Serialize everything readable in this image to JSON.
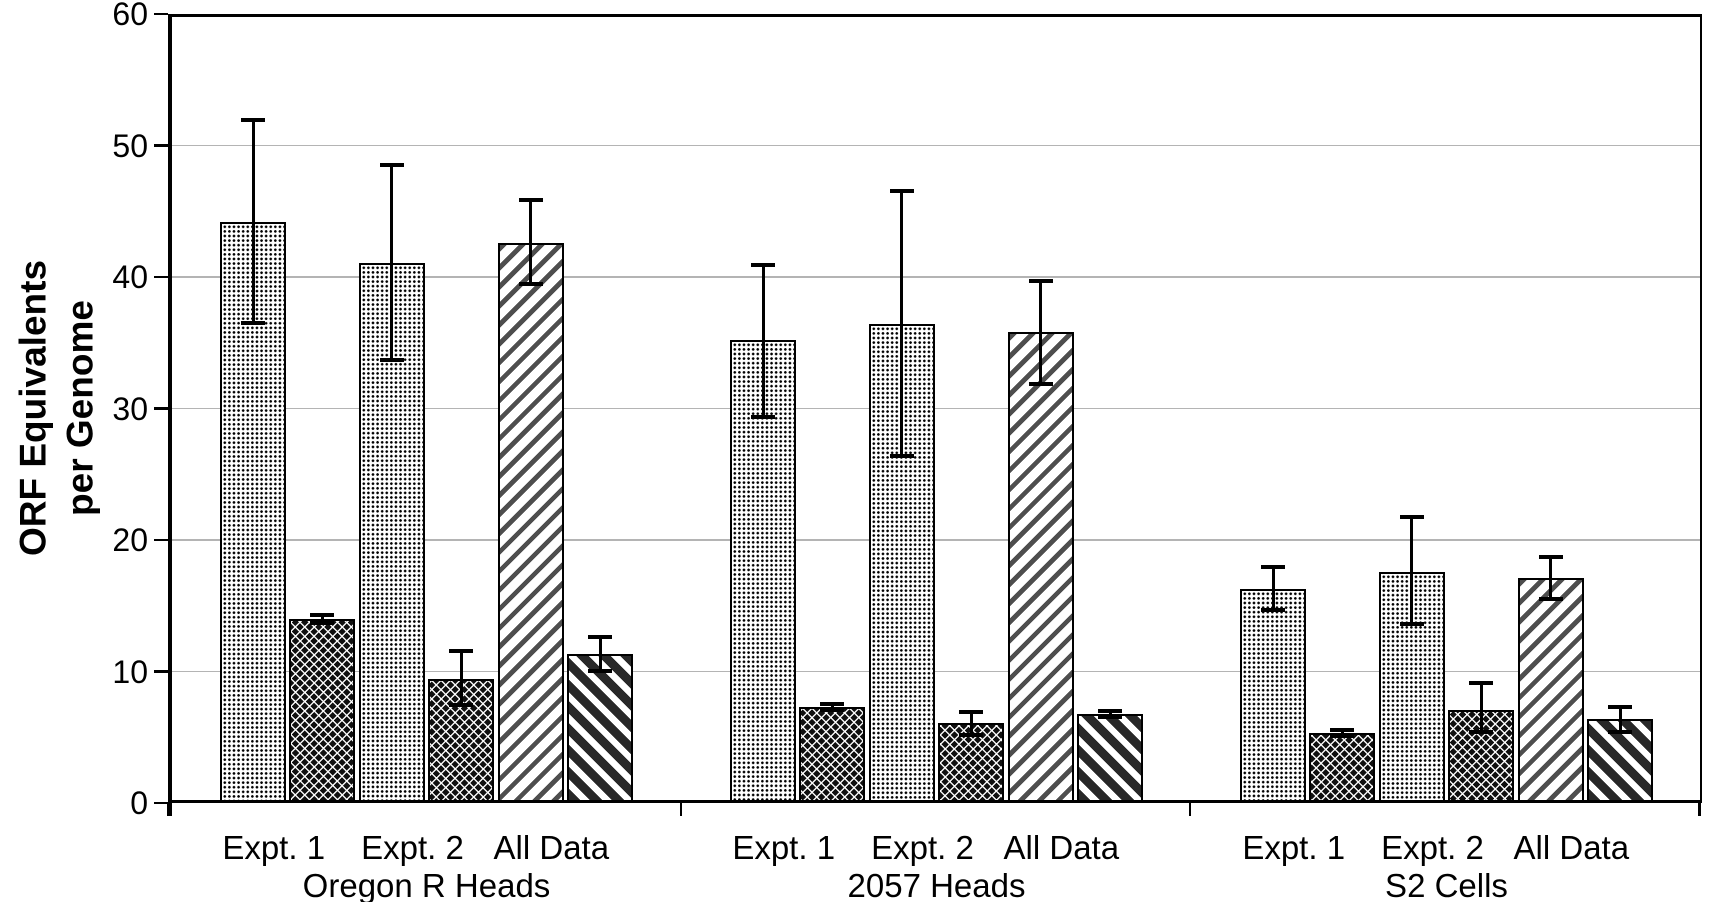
{
  "figure": {
    "background": "#ffffff",
    "gridline_color": "#b4b4b4",
    "axis_color": "#000000"
  },
  "chart_data": {
    "type": "bar",
    "title": "",
    "xlabel": "",
    "ylabel_lines": [
      "ORF Equivalents",
      "per Genome"
    ],
    "ylim": [
      0,
      60
    ],
    "yticks": [
      0,
      10,
      20,
      30,
      40,
      50,
      60
    ],
    "grid": "horizontal gridlines at each y tick",
    "legend_position": "none",
    "error_bars": true,
    "patterns": {
      "stipple": "light bar filled with fine black dot stipple",
      "crosshatch": "dark bar with fine white diagonal crosshatch lattice",
      "diag-light": "white bar with thin gray diagonal stripes rising to the right",
      "diag-dark": "white bar with thick dark diagonal stripes falling to the right"
    },
    "groups": [
      {
        "label": "Oregon R Heads",
        "subgroups": [
          {
            "label": "Expt. 1",
            "bars": [
              {
                "pattern": "stipple",
                "value": 44.2,
                "err_low": 36.4,
                "err_high": 52.0
              },
              {
                "pattern": "crosshatch",
                "value": 14.0,
                "err_low": 13.6,
                "err_high": 14.4
              }
            ]
          },
          {
            "label": "Expt. 2",
            "bars": [
              {
                "pattern": "stipple",
                "value": 41.1,
                "err_low": 33.6,
                "err_high": 48.6
              },
              {
                "pattern": "crosshatch",
                "value": 9.4,
                "err_low": 7.4,
                "err_high": 11.6
              }
            ]
          },
          {
            "label": "All Data",
            "bars": [
              {
                "pattern": "diag-light",
                "value": 42.6,
                "err_low": 39.4,
                "err_high": 45.9
              },
              {
                "pattern": "diag-dark",
                "value": 11.3,
                "err_low": 10.0,
                "err_high": 12.7
              }
            ]
          }
        ]
      },
      {
        "label": "2057 Heads",
        "subgroups": [
          {
            "label": "Expt. 1",
            "bars": [
              {
                "pattern": "stipple",
                "value": 35.2,
                "err_low": 29.3,
                "err_high": 41.0
              },
              {
                "pattern": "crosshatch",
                "value": 7.3,
                "err_low": 7.0,
                "err_high": 7.6
              }
            ]
          },
          {
            "label": "Expt. 2",
            "bars": [
              {
                "pattern": "stipple",
                "value": 36.4,
                "err_low": 26.3,
                "err_high": 46.6
              },
              {
                "pattern": "crosshatch",
                "value": 6.1,
                "err_low": 5.1,
                "err_high": 7.0
              }
            ]
          },
          {
            "label": "All Data",
            "bars": [
              {
                "pattern": "diag-light",
                "value": 35.8,
                "err_low": 31.8,
                "err_high": 39.8
              },
              {
                "pattern": "diag-dark",
                "value": 6.8,
                "err_low": 6.5,
                "err_high": 7.1
              }
            ]
          }
        ]
      },
      {
        "label": "S2 Cells",
        "subgroups": [
          {
            "label": "Expt. 1",
            "bars": [
              {
                "pattern": "stipple",
                "value": 16.3,
                "err_low": 14.6,
                "err_high": 18.0
              },
              {
                "pattern": "crosshatch",
                "value": 5.3,
                "err_low": 5.0,
                "err_high": 5.6
              }
            ]
          },
          {
            "label": "Expt. 2",
            "bars": [
              {
                "pattern": "stipple",
                "value": 17.6,
                "err_low": 13.5,
                "err_high": 21.8
              },
              {
                "pattern": "crosshatch",
                "value": 7.1,
                "err_low": 5.3,
                "err_high": 9.2
              }
            ]
          },
          {
            "label": "All Data",
            "bars": [
              {
                "pattern": "diag-light",
                "value": 17.1,
                "err_low": 15.4,
                "err_high": 18.8
              },
              {
                "pattern": "diag-dark",
                "value": 6.4,
                "err_low": 5.3,
                "err_high": 7.4
              }
            ]
          }
        ]
      }
    ]
  }
}
